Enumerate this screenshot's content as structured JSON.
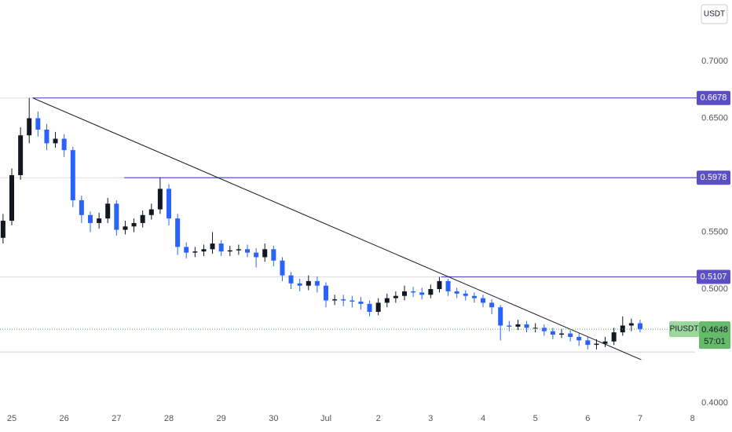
{
  "chart_data": {
    "type": "candlestick",
    "currency": "USDT",
    "symbol": "PIUSDT",
    "countdown": "57:01",
    "up_color": "#131722",
    "down_color": "#2962ff",
    "level_color": "#5b4fc7",
    "x": [
      -0.167,
      0,
      0.167,
      0.333,
      0.5,
      0.667,
      0.833,
      1,
      1.167,
      1.333,
      1.5,
      1.667,
      1.833,
      2,
      2.167,
      2.333,
      2.5,
      2.667,
      2.833,
      3,
      3.167,
      3.333,
      3.5,
      3.667,
      3.833,
      4,
      4.167,
      4.333,
      4.5,
      4.667,
      4.833,
      5,
      5.167,
      5.333,
      5.5,
      5.667,
      5.833,
      6,
      6.167,
      6.333,
      6.5,
      6.667,
      6.833,
      7,
      7.167,
      7.333,
      7.5,
      7.667,
      7.833,
      8,
      8.167,
      8.333,
      8.5,
      8.667,
      8.833,
      9,
      9.167,
      9.333,
      9.5,
      9.667,
      9.833,
      10,
      10.167,
      10.333,
      10.5,
      10.667,
      10.833,
      11,
      11.167,
      11.333,
      11.5,
      11.667,
      11.833,
      12
    ],
    "open": [
      0.545,
      0.56,
      0.6,
      0.635,
      0.65,
      0.64,
      0.628,
      0.632,
      0.622,
      0.578,
      0.565,
      0.558,
      0.562,
      0.575,
      0.552,
      0.555,
      0.558,
      0.565,
      0.57,
      0.588,
      0.562,
      0.537,
      0.532,
      0.533,
      0.535,
      0.54,
      0.533,
      0.534,
      0.535,
      0.532,
      0.528,
      0.535,
      0.525,
      0.512,
      0.505,
      0.503,
      0.507,
      0.503,
      0.49,
      0.491,
      0.49,
      0.489,
      0.487,
      0.48,
      0.488,
      0.492,
      0.494,
      0.498,
      0.497,
      0.495,
      0.5,
      0.507,
      0.498,
      0.496,
      0.494,
      0.492,
      0.488,
      0.484,
      0.468,
      0.467,
      0.469,
      0.466,
      0.466,
      0.463,
      0.46,
      0.461,
      0.458,
      0.455,
      0.451,
      0.452,
      0.454,
      0.462,
      0.468,
      0.47
    ],
    "high": [
      0.566,
      0.606,
      0.642,
      0.6678,
      0.656,
      0.645,
      0.638,
      0.636,
      0.625,
      0.582,
      0.568,
      0.567,
      0.58,
      0.578,
      0.56,
      0.562,
      0.569,
      0.575,
      0.5978,
      0.592,
      0.566,
      0.541,
      0.537,
      0.539,
      0.55,
      0.543,
      0.538,
      0.539,
      0.539,
      0.536,
      0.54,
      0.538,
      0.528,
      0.515,
      0.509,
      0.512,
      0.511,
      0.506,
      0.495,
      0.495,
      0.494,
      0.493,
      0.49,
      0.492,
      0.496,
      0.498,
      0.503,
      0.502,
      0.501,
      0.504,
      0.5107,
      0.509,
      0.501,
      0.499,
      0.497,
      0.495,
      0.491,
      0.486,
      0.472,
      0.473,
      0.472,
      0.47,
      0.469,
      0.466,
      0.465,
      0.464,
      0.461,
      0.458,
      0.456,
      0.458,
      0.466,
      0.476,
      0.474,
      0.473
    ],
    "low": [
      0.54,
      0.556,
      0.596,
      0.628,
      0.634,
      0.622,
      0.624,
      0.616,
      0.572,
      0.558,
      0.55,
      0.553,
      0.558,
      0.547,
      0.548,
      0.55,
      0.554,
      0.561,
      0.566,
      0.556,
      0.53,
      0.527,
      0.528,
      0.529,
      0.531,
      0.529,
      0.529,
      0.53,
      0.528,
      0.519,
      0.524,
      0.52,
      0.507,
      0.5,
      0.498,
      0.499,
      0.497,
      0.484,
      0.486,
      0.485,
      0.484,
      0.482,
      0.476,
      0.477,
      0.484,
      0.488,
      0.49,
      0.493,
      0.491,
      0.492,
      0.497,
      0.494,
      0.492,
      0.49,
      0.488,
      0.484,
      0.478,
      0.455,
      0.463,
      0.464,
      0.462,
      0.462,
      0.459,
      0.456,
      0.457,
      0.454,
      0.45,
      0.447,
      0.447,
      0.449,
      0.451,
      0.459,
      0.463,
      0.462
    ],
    "close": [
      0.56,
      0.6,
      0.635,
      0.65,
      0.64,
      0.628,
      0.632,
      0.622,
      0.578,
      0.565,
      0.558,
      0.562,
      0.575,
      0.552,
      0.555,
      0.558,
      0.565,
      0.57,
      0.588,
      0.562,
      0.537,
      0.532,
      0.533,
      0.535,
      0.54,
      0.533,
      0.534,
      0.535,
      0.532,
      0.528,
      0.535,
      0.525,
      0.512,
      0.505,
      0.503,
      0.507,
      0.503,
      0.49,
      0.491,
      0.49,
      0.489,
      0.487,
      0.48,
      0.488,
      0.492,
      0.494,
      0.498,
      0.497,
      0.495,
      0.5,
      0.507,
      0.498,
      0.496,
      0.494,
      0.492,
      0.488,
      0.484,
      0.468,
      0.467,
      0.469,
      0.466,
      0.466,
      0.463,
      0.46,
      0.461,
      0.458,
      0.455,
      0.451,
      0.452,
      0.454,
      0.462,
      0.468,
      0.47,
      0.4648
    ],
    "levels": [
      {
        "value": 0.6678,
        "x_start": 0.4
      },
      {
        "value": 0.5978,
        "x_start": 2.15
      },
      {
        "value": 0.5107,
        "x_start": 8.2
      }
    ],
    "support_line": 0.4448,
    "trendline": {
      "x": [
        0.4,
        12.02
      ],
      "y": [
        0.6678,
        0.438
      ]
    },
    "xlim": [
      -0.225,
      13.05
    ],
    "xticks": [
      {
        "value": 0,
        "label": "25"
      },
      {
        "value": 1,
        "label": "26"
      },
      {
        "value": 2,
        "label": "27"
      },
      {
        "value": 3,
        "label": "28"
      },
      {
        "value": 4,
        "label": "29"
      },
      {
        "value": 5,
        "label": "30"
      },
      {
        "value": 6,
        "label": "Jul"
      },
      {
        "value": 7,
        "label": "2"
      },
      {
        "value": 8,
        "label": "3"
      },
      {
        "value": 9,
        "label": "4"
      },
      {
        "value": 10,
        "label": "5"
      },
      {
        "value": 11,
        "label": "6"
      },
      {
        "value": 12,
        "label": "7"
      },
      {
        "value": 13,
        "label": "8"
      }
    ],
    "ylim": [
      0.3952,
      0.7538
    ],
    "yticks": [
      {
        "value": 0.7,
        "label": "0.7000"
      },
      {
        "value": 0.65,
        "label": "0.6500"
      },
      {
        "value": 0.55,
        "label": "0.5500"
      },
      {
        "value": 0.5,
        "label": "0.5000"
      },
      {
        "value": 0.4,
        "label": "0.4000"
      }
    ]
  }
}
